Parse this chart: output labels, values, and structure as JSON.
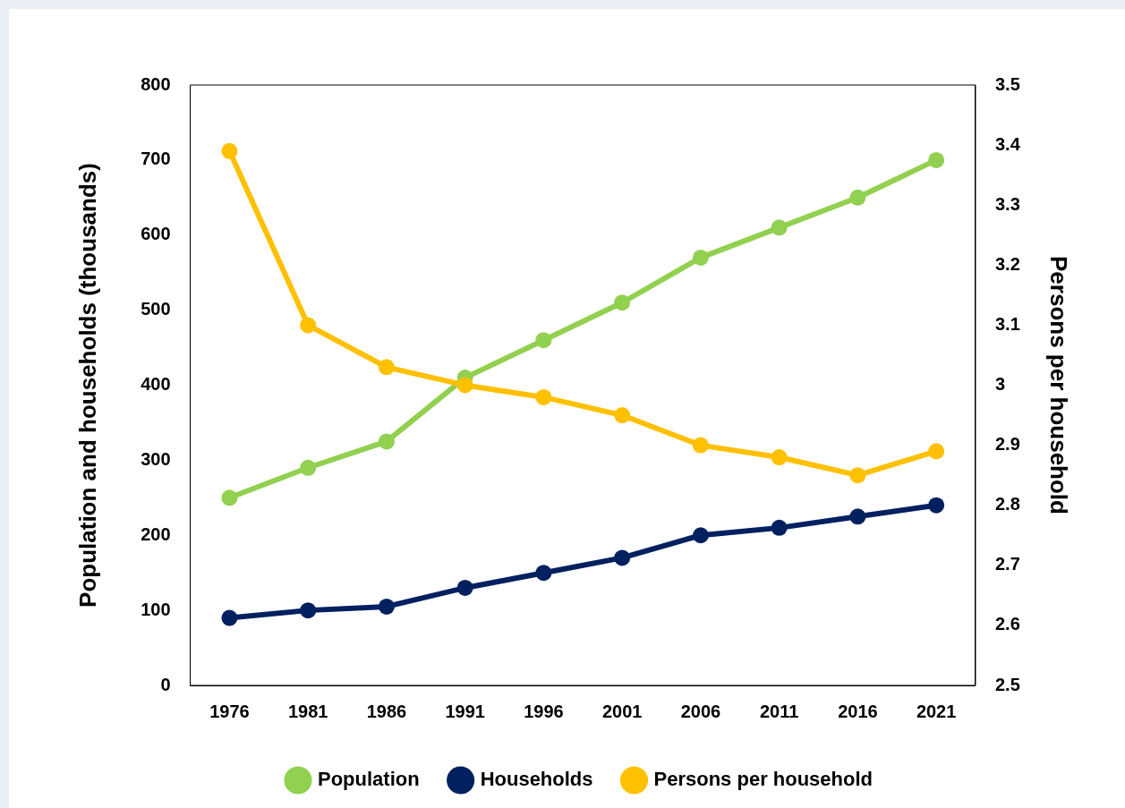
{
  "chart_data": {
    "type": "line",
    "ylabel": "Population and households (thousands)",
    "y2label": "Persons per household",
    "categories": [
      "1976",
      "1981",
      "1986",
      "1991",
      "1996",
      "2001",
      "2006",
      "2011",
      "2016",
      "2021"
    ],
    "series": [
      {
        "name": "Population",
        "color": "#92d050",
        "values": [
          250,
          290,
          325,
          410,
          460,
          510,
          570,
          610,
          650,
          700
        ]
      },
      {
        "name": "Households",
        "color": "#002060",
        "values": [
          90,
          100,
          105,
          130,
          150,
          170,
          200,
          210,
          225,
          240
        ]
      },
      {
        "name": "Persons per household",
        "color": "#ffc000",
        "axis": "y2",
        "values": [
          3.39,
          3.1,
          3.03,
          3.0,
          2.98,
          2.95,
          2.9,
          2.88,
          2.85,
          2.89
        ]
      }
    ],
    "ylim": [
      0,
      800
    ],
    "yticks": [
      0,
      100,
      200,
      300,
      400,
      500,
      600,
      700,
      800
    ],
    "y2lim": [
      2.5,
      3.5
    ],
    "y2ticks": [
      2.5,
      2.6,
      2.7,
      2.8,
      2.9,
      3,
      3.1,
      3.2,
      3.3,
      3.4,
      3.5
    ],
    "grid": false,
    "legend": "bottom",
    "marker": "circle",
    "line_style": "solid"
  }
}
